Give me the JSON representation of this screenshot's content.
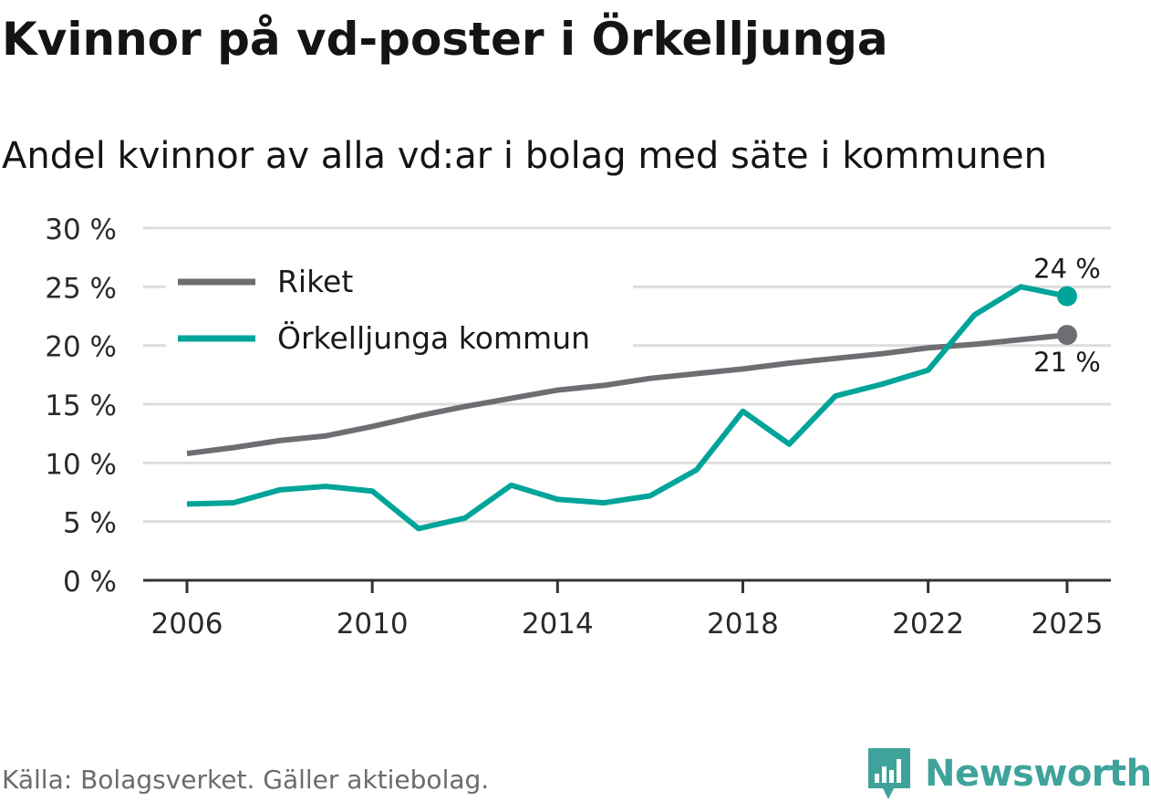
{
  "title": "Kvinnor på vd-poster i Örkelljunga",
  "subtitle": "Andel kvinnor av alla vd:ar i bolag med säte i kommunen",
  "source": "Källa: Bolagsverket. Gäller aktiebolag.",
  "brand": {
    "name": "Newsworthy",
    "icon": "newsworthy-chart-icon"
  },
  "colors": {
    "riket": "#6e6d72",
    "kommun": "#00a499",
    "grid": "#dedede",
    "axis": "#333333"
  },
  "chart_data": {
    "type": "line",
    "title": "Andel kvinnor av alla vd:ar i bolag med säte i kommunen",
    "xlabel": "",
    "ylabel": "",
    "x": [
      2006,
      2007,
      2008,
      2009,
      2010,
      2011,
      2012,
      2013,
      2014,
      2015,
      2016,
      2017,
      2018,
      2019,
      2020,
      2021,
      2022,
      2023,
      2024,
      2025
    ],
    "xlim": [
      2005,
      2026
    ],
    "ylim": [
      0,
      30
    ],
    "x_ticks": [
      "2006",
      "2010",
      "2014",
      "2018",
      "2022",
      "2025"
    ],
    "y_ticks": [
      "0 %",
      "5 %",
      "10 %",
      "15 %",
      "20 %",
      "25 %",
      "30 %"
    ],
    "grid": true,
    "legend_position": "top-left",
    "series": [
      {
        "name": "Riket",
        "color_key": "riket",
        "values": [
          10.8,
          11.3,
          11.9,
          12.3,
          13.1,
          14.0,
          14.8,
          15.5,
          16.2,
          16.6,
          17.2,
          17.6,
          18.0,
          18.5,
          18.9,
          19.3,
          19.8,
          20.1,
          20.5,
          20.9
        ],
        "end_label": "21 %"
      },
      {
        "name": "Örkelljunga kommun",
        "color_key": "kommun",
        "values": [
          6.5,
          6.6,
          7.7,
          8.0,
          7.6,
          4.4,
          5.3,
          8.1,
          6.9,
          6.6,
          7.2,
          9.4,
          14.4,
          11.6,
          15.7,
          16.7,
          17.9,
          22.6,
          25.0,
          24.2
        ],
        "end_label": "24 %"
      }
    ]
  }
}
